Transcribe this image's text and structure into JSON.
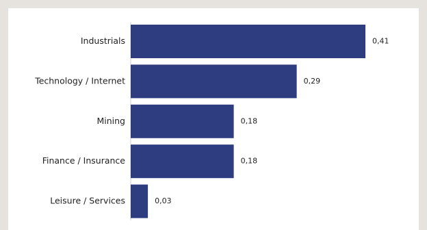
{
  "chart_data": {
    "type": "bar",
    "orientation": "horizontal",
    "categories": [
      "Industrials",
      "Technology / Internet",
      "Mining",
      "Finance / Insurance",
      "Leisure / Services"
    ],
    "values": [
      0.41,
      0.29,
      0.18,
      0.18,
      0.03
    ],
    "value_labels": [
      "0,41",
      "0,29",
      "0,18",
      "0,18",
      "0,03"
    ],
    "xlim": [
      0,
      0.41
    ],
    "grid": false,
    "legend": "none",
    "bar_color": "#2e3c80"
  }
}
